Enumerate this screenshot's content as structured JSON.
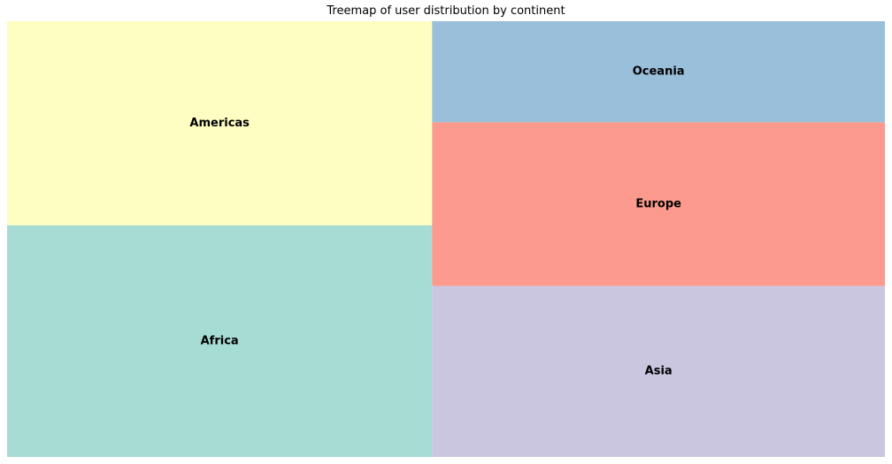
{
  "chart_data": {
    "type": "treemap",
    "title": "Treemap of user distribution by continent",
    "items": [
      {
        "label": "Africa",
        "share": 0.2463,
        "color": "#a6dcd4"
      },
      {
        "label": "Americas",
        "share": 0.2169,
        "color": "#fefec2"
      },
      {
        "label": "Asia",
        "share": 0.1937,
        "color": "#cbc6e0"
      },
      {
        "label": "Europe",
        "share": 0.1853,
        "color": "#fb9a8d"
      },
      {
        "label": "Oceania",
        "share": 0.1144,
        "color": "#99bfda"
      }
    ]
  }
}
